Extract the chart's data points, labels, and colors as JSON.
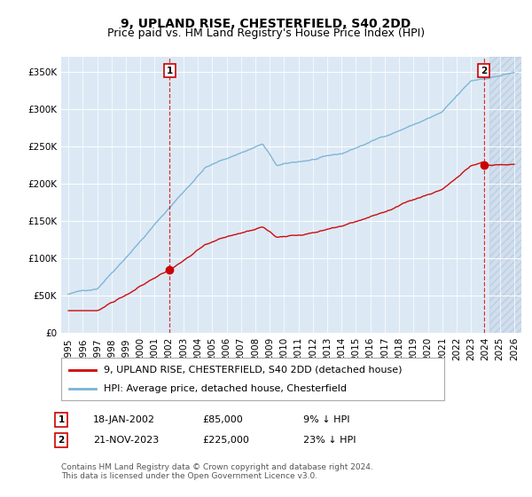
{
  "title": "9, UPLAND RISE, CHESTERFIELD, S40 2DD",
  "subtitle": "Price paid vs. HM Land Registry's House Price Index (HPI)",
  "ylim": [
    0,
    370000
  ],
  "yticks": [
    0,
    50000,
    100000,
    150000,
    200000,
    250000,
    300000,
    350000
  ],
  "ytick_labels": [
    "£0",
    "£50K",
    "£100K",
    "£150K",
    "£200K",
    "£250K",
    "£300K",
    "£350K"
  ],
  "background_color": "#ffffff",
  "plot_bg_color": "#dce9f5",
  "hpi_color": "#7ab3d4",
  "price_color": "#cc0000",
  "grid_color": "#ffffff",
  "sale1_year": 2002.05,
  "sale1_price": 85000,
  "sale2_year": 2023.9,
  "sale2_price": 225000,
  "hatch_start": 2024.3,
  "xlim_left": 1994.5,
  "xlim_right": 2026.5,
  "legend_line1": "9, UPLAND RISE, CHESTERFIELD, S40 2DD (detached house)",
  "legend_line2": "HPI: Average price, detached house, Chesterfield",
  "annotation1_date": "18-JAN-2002",
  "annotation1_price": "£85,000",
  "annotation1_hpi": "9% ↓ HPI",
  "annotation2_date": "21-NOV-2023",
  "annotation2_price": "£225,000",
  "annotation2_hpi": "23% ↓ HPI",
  "footer": "Contains HM Land Registry data © Crown copyright and database right 2024.\nThis data is licensed under the Open Government Licence v3.0.",
  "title_fontsize": 10,
  "subtitle_fontsize": 9,
  "tick_fontsize": 7.5,
  "legend_fontsize": 8,
  "ann_fontsize": 8,
  "footer_fontsize": 6.5
}
